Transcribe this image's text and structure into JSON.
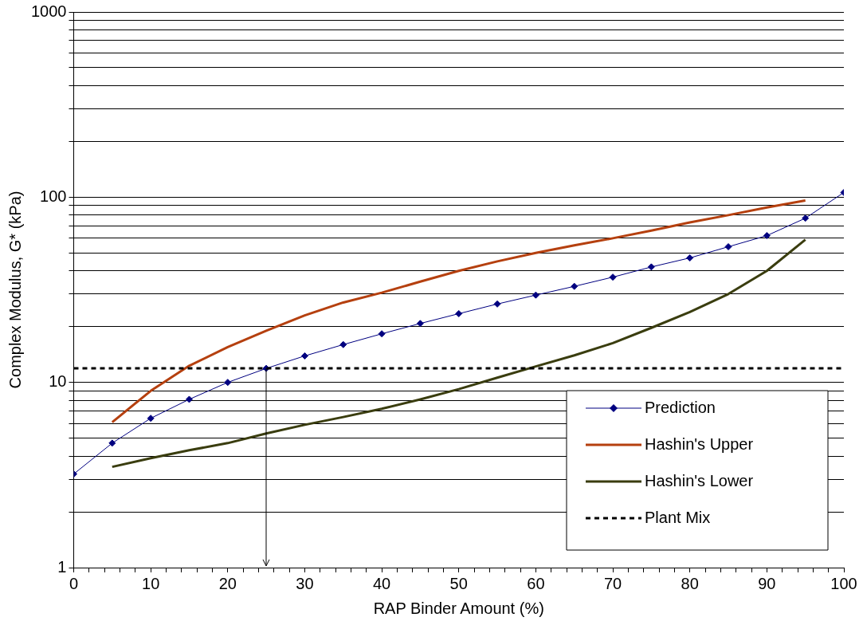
{
  "chart_data": {
    "type": "line",
    "xlabel": "RAP Binder Amount (%)",
    "ylabel": "Complex Modulus, G* (kPa)",
    "log": "y",
    "xlim": [
      0,
      100
    ],
    "xticks": [
      0,
      {
        "value": 2,
        "label": null
      },
      {
        "value": 4,
        "label": null
      },
      {
        "value": 6,
        "label": null
      },
      {
        "value": 8,
        "label": null
      },
      10,
      {
        "value": 12,
        "label": null
      },
      {
        "value": 14,
        "label": null
      },
      {
        "value": 16,
        "label": null
      },
      {
        "value": 18,
        "label": null
      },
      20,
      {
        "value": 22,
        "label": null
      },
      {
        "value": 24,
        "label": null
      },
      {
        "value": 26,
        "label": null
      },
      {
        "value": 28,
        "label": null
      },
      30,
      {
        "value": 32,
        "label": null
      },
      {
        "value": 34,
        "label": null
      },
      {
        "value": 36,
        "label": null
      },
      {
        "value": 38,
        "label": null
      },
      40,
      {
        "value": 42,
        "label": null
      },
      {
        "value": 44,
        "label": null
      },
      {
        "value": 46,
        "label": null
      },
      {
        "value": 48,
        "label": null
      },
      50,
      {
        "value": 52,
        "label": null
      },
      {
        "value": 54,
        "label": null
      },
      {
        "value": 56,
        "label": null
      },
      {
        "value": 58,
        "label": null
      },
      60,
      {
        "value": 62,
        "label": null
      },
      {
        "value": 64,
        "label": null
      },
      {
        "value": 66,
        "label": null
      },
      {
        "value": 68,
        "label": null
      },
      70,
      {
        "value": 72,
        "label": null
      },
      {
        "value": 74,
        "label": null
      },
      {
        "value": 76,
        "label": null
      },
      {
        "value": 78,
        "label": null
      },
      80,
      {
        "value": 82,
        "label": null
      },
      {
        "value": 84,
        "label": null
      },
      {
        "value": 86,
        "label": null
      },
      {
        "value": 88,
        "label": null
      },
      90,
      {
        "value": 92,
        "label": null
      },
      {
        "value": 94,
        "label": null
      },
      {
        "value": 96,
        "label": null
      },
      {
        "value": 98,
        "label": null
      },
      100
    ],
    "ylim": [
      1,
      1000
    ],
    "yticks": [
      1,
      {
        "value": 2,
        "label": null
      },
      {
        "value": 3,
        "label": null
      },
      {
        "value": 4,
        "label": null
      },
      {
        "value": 5,
        "label": null
      },
      {
        "value": 6,
        "label": null
      },
      {
        "value": 7,
        "label": null
      },
      {
        "value": 8,
        "label": null
      },
      {
        "value": 9,
        "label": null
      },
      10,
      {
        "value": 20,
        "label": null
      },
      {
        "value": 30,
        "label": null
      },
      {
        "value": 40,
        "label": null
      },
      {
        "value": 50,
        "label": null
      },
      {
        "value": 60,
        "label": null
      },
      {
        "value": 70,
        "label": null
      },
      {
        "value": 80,
        "label": null
      },
      {
        "value": 90,
        "label": null
      },
      100,
      {
        "value": 200,
        "label": null
      },
      {
        "value": 300,
        "label": null
      },
      {
        "value": 400,
        "label": null
      },
      {
        "value": 500,
        "label": null
      },
      {
        "value": 600,
        "label": null
      },
      {
        "value": 700,
        "label": null
      },
      {
        "value": 800,
        "label": null
      },
      {
        "value": 900,
        "label": null
      },
      1000
    ],
    "grid": "y",
    "legend": "bottom right",
    "series": [
      {
        "name": "Prediction",
        "color": "#000080",
        "marker": "diamond",
        "x": [
          0,
          5,
          10,
          15,
          20,
          25,
          30,
          35,
          40,
          45,
          50,
          55,
          60,
          65,
          70,
          75,
          80,
          85,
          90,
          95,
          100
        ],
        "values": [
          3.2,
          4.7,
          6.4,
          8.1,
          10,
          11.9,
          13.9,
          16,
          18.3,
          20.8,
          23.5,
          26.5,
          29.6,
          33,
          37,
          42,
          47,
          54,
          62,
          77,
          106
        ]
      },
      {
        "name": "Hashin's Upper",
        "color": "#b5400f",
        "marker": "none",
        "x": [
          5,
          10,
          15,
          20,
          25,
          30,
          35,
          40,
          45,
          50,
          55,
          60,
          65,
          70,
          75,
          80,
          85,
          90,
          95
        ],
        "values": [
          6.1,
          9,
          12.3,
          15.5,
          19,
          23,
          27,
          30.5,
          35,
          40,
          45,
          50,
          55,
          60,
          66,
          73,
          80,
          88,
          96
        ]
      },
      {
        "name": "Hashin's Lower",
        "color": "#3a3d0f",
        "marker": "none",
        "x": [
          5,
          10,
          15,
          20,
          25,
          30,
          35,
          40,
          45,
          50,
          55,
          60,
          65,
          70,
          75,
          80,
          85,
          90,
          95
        ],
        "values": [
          3.5,
          3.9,
          4.3,
          4.7,
          5.3,
          5.9,
          6.5,
          7.2,
          8.1,
          9.2,
          10.6,
          12.2,
          14,
          16.3,
          19.7,
          24,
          30,
          40,
          59
        ]
      }
    ],
    "ref_lines": [
      {
        "axis": "y",
        "value": 11.9,
        "label": "Plant Mix",
        "color": "#000000",
        "line_style": "dashed"
      },
      {
        "axis": "x",
        "value": 25,
        "label": null,
        "color": "#000000",
        "line_style": "solid"
      }
    ]
  }
}
